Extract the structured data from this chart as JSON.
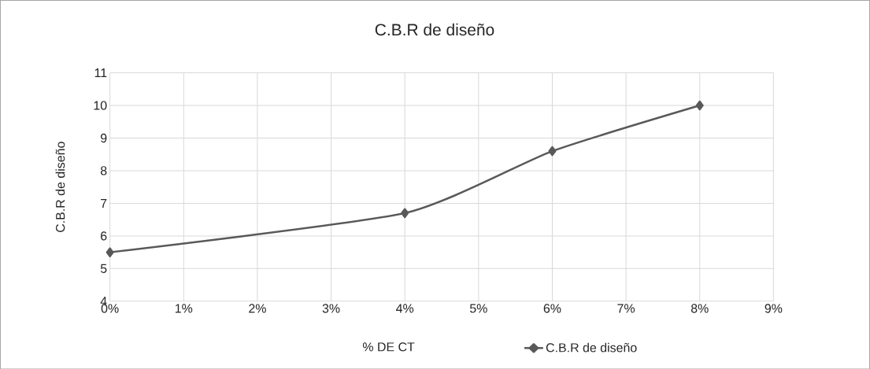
{
  "chart_data": {
    "type": "line",
    "title": "C.B.R de diseño",
    "xlabel": "% DE CT",
    "ylabel": "C.B.R de diseño",
    "x": [
      0,
      4,
      6,
      8
    ],
    "series": [
      {
        "name": "C.B.R de diseño",
        "color": "#595959",
        "values": [
          5.5,
          6.7,
          8.6,
          10.0
        ]
      }
    ],
    "xlim": [
      0,
      9
    ],
    "xticks": [
      {
        "value": 0,
        "label": "0%"
      },
      {
        "value": 1,
        "label": "1%"
      },
      {
        "value": 2,
        "label": "2%"
      },
      {
        "value": 3,
        "label": "3%"
      },
      {
        "value": 4,
        "label": "4%"
      },
      {
        "value": 5,
        "label": "5%"
      },
      {
        "value": 6,
        "label": "6%"
      },
      {
        "value": 7,
        "label": "7%"
      },
      {
        "value": 8,
        "label": "8%"
      },
      {
        "value": 9,
        "label": "9%"
      }
    ],
    "ylim": [
      4,
      11
    ],
    "yticks": [
      4,
      5,
      6,
      7,
      8,
      9,
      10,
      11
    ],
    "grid": true,
    "legend": "bottom right",
    "marker": "diamond",
    "line_style": "solid"
  }
}
